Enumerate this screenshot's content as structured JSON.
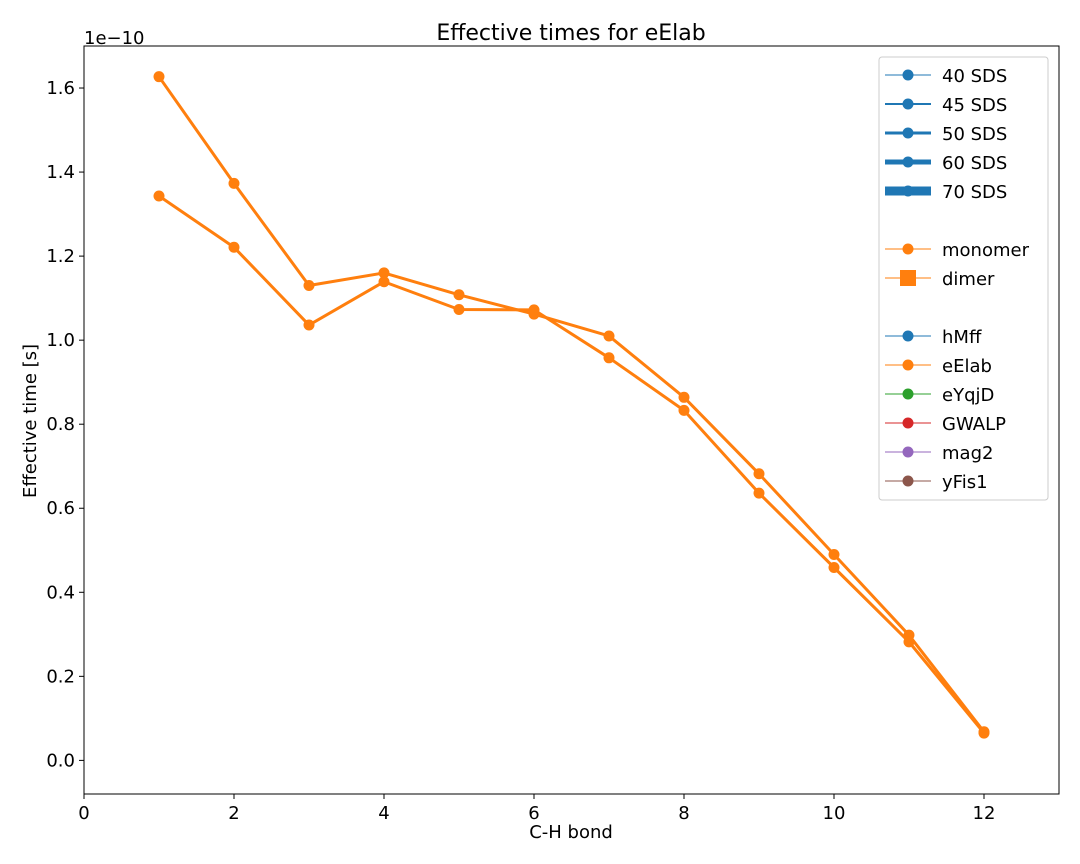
{
  "chart_data": {
    "type": "line",
    "title": "Effective times for eElab",
    "xlabel": "C-H bond",
    "ylabel": "Effective time [s]",
    "y_scale_label": "1e−10",
    "xlim": [
      0,
      13
    ],
    "ylim": [
      -0.08,
      1.7
    ],
    "xticks": [
      0,
      2,
      4,
      6,
      8,
      10,
      12
    ],
    "yticks": [
      0.0,
      0.2,
      0.4,
      0.6,
      0.8,
      1.0,
      1.2,
      1.4,
      1.6
    ],
    "xtick_labels": [
      "0",
      "2",
      "4",
      "6",
      "8",
      "10",
      "12"
    ],
    "ytick_labels": [
      "0.0",
      "0.2",
      "0.4",
      "0.6",
      "0.8",
      "1.0",
      "1.2",
      "1.4",
      "1.6"
    ],
    "grid": false,
    "legend_placement": "upper-right",
    "x": [
      1,
      2,
      3,
      4,
      5,
      6,
      7,
      8,
      9,
      10,
      11,
      12
    ],
    "series": [
      {
        "color": "#ff7f0e",
        "values": [
          1.627,
          1.373,
          1.13,
          1.16,
          1.108,
          1.062,
          1.01,
          0.864,
          0.682,
          0.49,
          0.298,
          0.068
        ]
      },
      {
        "color": "#ff7f0e",
        "values": [
          1.343,
          1.221,
          1.036,
          1.139,
          1.073,
          1.072,
          0.958,
          0.833,
          0.636,
          0.459,
          0.282,
          0.065
        ]
      }
    ],
    "legend": [
      {
        "label": "40 SDS",
        "color": "#1f77b4",
        "line_width": 1,
        "marker": "circle"
      },
      {
        "label": "45 SDS",
        "color": "#1f77b4",
        "line_width": 2,
        "marker": "circle"
      },
      {
        "label": "50 SDS",
        "color": "#1f77b4",
        "line_width": 3,
        "marker": "circle"
      },
      {
        "label": "60 SDS",
        "color": "#1f77b4",
        "line_width": 5,
        "marker": "circle"
      },
      {
        "label": "70 SDS",
        "color": "#1f77b4",
        "line_width": 9,
        "marker": "circle"
      },
      {
        "label": "",
        "color": "none",
        "line_width": 0,
        "marker": "none"
      },
      {
        "label": "monomer",
        "color": "#ff7f0e",
        "line_width": 1,
        "marker": "circle"
      },
      {
        "label": "dimer",
        "color": "#ff7f0e",
        "line_width": 1,
        "marker": "square"
      },
      {
        "label": "",
        "color": "none",
        "line_width": 0,
        "marker": "none"
      },
      {
        "label": "hMff",
        "color": "#1f77b4",
        "line_width": 1,
        "marker": "circle"
      },
      {
        "label": "eElab",
        "color": "#ff7f0e",
        "line_width": 1,
        "marker": "circle"
      },
      {
        "label": "eYqjD",
        "color": "#2ca02c",
        "line_width": 1,
        "marker": "circle"
      },
      {
        "label": "GWALP",
        "color": "#d62728",
        "line_width": 1,
        "marker": "circle"
      },
      {
        "label": "mag2",
        "color": "#9467bd",
        "line_width": 1,
        "marker": "circle"
      },
      {
        "label": "yFis1",
        "color": "#8c564b",
        "line_width": 1,
        "marker": "circle"
      }
    ]
  }
}
